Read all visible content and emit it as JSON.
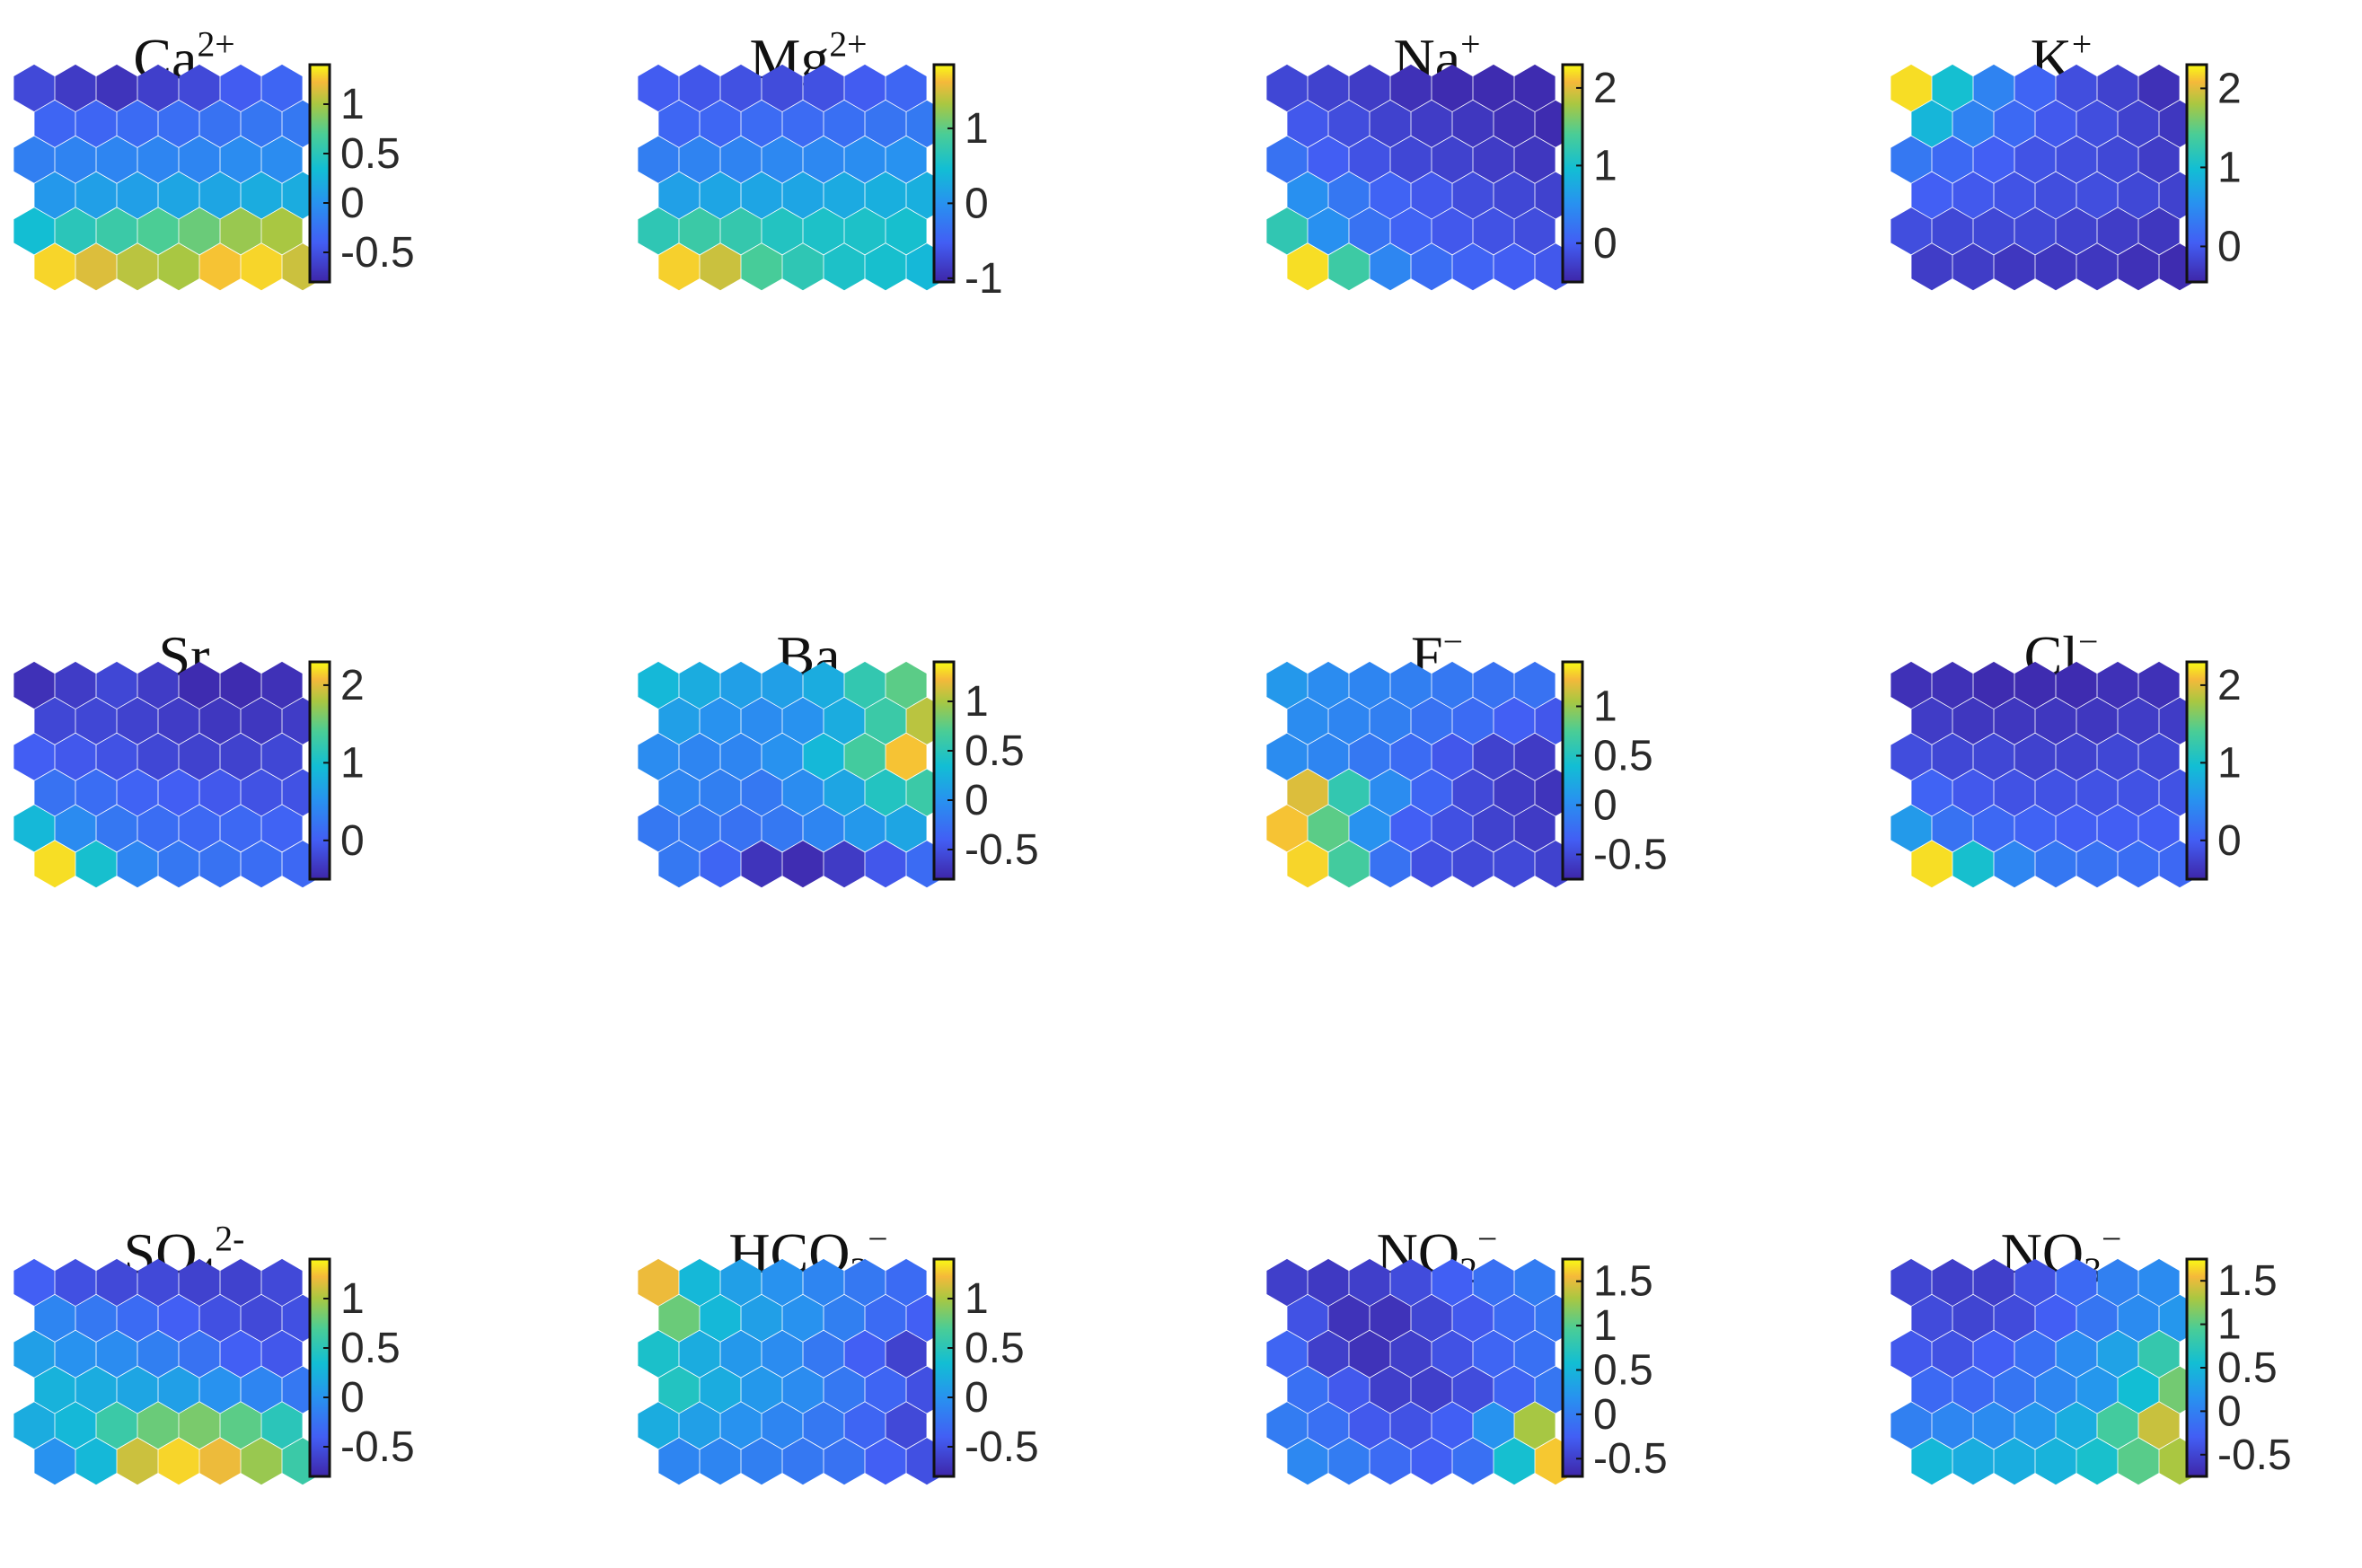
{
  "chart_data": [
    {
      "type": "heatmap",
      "title": "Ca2+",
      "title_parts": {
        "base": "Ca",
        "sub": "",
        "sup": "2+"
      },
      "colorbar": {
        "range": [
          -0.8,
          1.4
        ],
        "ticks": [
          -0.5,
          0,
          0.5,
          1
        ],
        "tick_labels": [
          "-0.5",
          "0",
          "0.5",
          "1"
        ]
      },
      "rows": 6,
      "cols": 7,
      "grid": [
        [
          -0.55,
          -0.65,
          -0.7,
          -0.62,
          -0.55,
          -0.42,
          -0.35
        ],
        [
          -0.35,
          -0.35,
          -0.3,
          -0.28,
          -0.25,
          -0.22,
          -0.2
        ],
        [
          -0.15,
          -0.12,
          -0.1,
          -0.1,
          -0.1,
          -0.05,
          -0.05
        ],
        [
          0.05,
          0.1,
          0.1,
          0.15,
          0.15,
          0.2,
          0.2
        ],
        [
          0.35,
          0.5,
          0.6,
          0.7,
          0.8,
          0.95,
          1.0
        ],
        [
          1.3,
          1.15,
          1.05,
          1.0,
          1.25,
          1.3,
          1.1
        ]
      ]
    },
    {
      "type": "heatmap",
      "title": "Mg2+",
      "title_parts": {
        "base": "Mg",
        "sub": "",
        "sup": "2+"
      },
      "colorbar": {
        "range": [
          -1.05,
          1.85
        ],
        "ticks": [
          -1,
          0,
          1
        ],
        "tick_labels": [
          "-1",
          "0",
          "1"
        ]
      },
      "rows": 6,
      "cols": 7,
      "grid": [
        [
          -0.55,
          -0.6,
          -0.65,
          -0.7,
          -0.65,
          -0.55,
          -0.45
        ],
        [
          -0.45,
          -0.45,
          -0.4,
          -0.4,
          -0.35,
          -0.3,
          -0.25
        ],
        [
          -0.2,
          -0.15,
          -0.15,
          -0.1,
          -0.1,
          -0.05,
          0.0
        ],
        [
          0.15,
          0.2,
          0.2,
          0.2,
          0.25,
          0.3,
          0.3
        ],
        [
          0.7,
          0.8,
          0.75,
          0.6,
          0.55,
          0.55,
          0.5
        ],
        [
          1.7,
          1.45,
          0.9,
          0.7,
          0.55,
          0.5,
          0.4
        ]
      ]
    },
    {
      "type": "heatmap",
      "title": "Na+",
      "title_parts": {
        "base": "Na",
        "sub": "",
        "sup": "+"
      },
      "colorbar": {
        "range": [
          -0.5,
          2.3
        ],
        "ticks": [
          0,
          1,
          2
        ],
        "tick_labels": [
          "0",
          "1",
          "2"
        ]
      },
      "rows": 6,
      "cols": 7,
      "grid": [
        [
          -0.2,
          -0.25,
          -0.3,
          -0.4,
          -0.45,
          -0.45,
          -0.45
        ],
        [
          -0.05,
          -0.15,
          -0.25,
          -0.3,
          -0.35,
          -0.4,
          -0.45
        ],
        [
          0.2,
          0.0,
          -0.1,
          -0.2,
          -0.25,
          -0.3,
          -0.35
        ],
        [
          0.5,
          0.25,
          0.05,
          -0.05,
          -0.15,
          -0.2,
          -0.25
        ],
        [
          1.2,
          0.5,
          0.2,
          0.05,
          -0.05,
          -0.1,
          -0.15
        ],
        [
          2.2,
          1.3,
          0.4,
          0.15,
          0.05,
          0.0,
          -0.05
        ]
      ]
    },
    {
      "type": "heatmap",
      "title": "K+",
      "title_parts": {
        "base": "K",
        "sub": "",
        "sup": "+"
      },
      "colorbar": {
        "range": [
          -0.45,
          2.3
        ],
        "ticks": [
          0,
          1,
          2
        ],
        "tick_labels": [
          "0",
          "1",
          "2"
        ]
      },
      "rows": 6,
      "cols": 7,
      "grid": [
        [
          2.2,
          1.0,
          0.4,
          0.1,
          -0.1,
          -0.2,
          -0.35
        ],
        [
          0.9,
          0.4,
          0.15,
          0.0,
          -0.1,
          -0.2,
          -0.3
        ],
        [
          0.3,
          0.15,
          0.05,
          -0.05,
          -0.1,
          -0.15,
          -0.25
        ],
        [
          0.05,
          0.0,
          -0.05,
          -0.1,
          -0.1,
          -0.15,
          -0.2
        ],
        [
          -0.1,
          -0.15,
          -0.15,
          -0.15,
          -0.2,
          -0.25,
          -0.3
        ],
        [
          -0.25,
          -0.25,
          -0.3,
          -0.3,
          -0.3,
          -0.35,
          -0.4
        ]
      ]
    },
    {
      "type": "heatmap",
      "title": "Sr",
      "title_parts": {
        "base": "Sr",
        "sub": "",
        "sup": ""
      },
      "colorbar": {
        "range": [
          -0.5,
          2.3
        ],
        "ticks": [
          0,
          1,
          2
        ],
        "tick_labels": [
          "0",
          "1",
          "2"
        ]
      },
      "rows": 6,
      "cols": 7,
      "grid": [
        [
          -0.4,
          -0.3,
          -0.2,
          -0.3,
          -0.45,
          -0.45,
          -0.4
        ],
        [
          -0.2,
          -0.2,
          -0.25,
          -0.3,
          -0.35,
          -0.35,
          -0.3
        ],
        [
          0.0,
          -0.05,
          -0.1,
          -0.2,
          -0.25,
          -0.25,
          -0.2
        ],
        [
          0.2,
          0.15,
          0.05,
          0.0,
          -0.05,
          -0.1,
          -0.1
        ],
        [
          0.9,
          0.45,
          0.25,
          0.15,
          0.1,
          0.1,
          0.05
        ],
        [
          2.2,
          1.0,
          0.4,
          0.25,
          0.2,
          0.15,
          0.1
        ]
      ]
    },
    {
      "type": "heatmap",
      "title": "Ba",
      "title_parts": {
        "base": "Ba",
        "sub": "",
        "sup": ""
      },
      "colorbar": {
        "range": [
          -0.8,
          1.4
        ],
        "ticks": [
          -0.5,
          0,
          0.5,
          1
        ],
        "tick_labels": [
          "-0.5",
          "0",
          "0.5",
          "1"
        ]
      },
      "rows": 6,
      "cols": 7,
      "grid": [
        [
          0.3,
          0.2,
          0.1,
          0.1,
          0.2,
          0.55,
          0.75
        ],
        [
          0.1,
          0.0,
          -0.05,
          0.0,
          0.2,
          0.6,
          1.05
        ],
        [
          -0.05,
          -0.1,
          -0.1,
          0.0,
          0.3,
          0.65,
          1.25
        ],
        [
          -0.1,
          -0.15,
          -0.2,
          -0.05,
          0.15,
          0.45,
          0.6
        ],
        [
          -0.2,
          -0.2,
          -0.25,
          -0.2,
          -0.1,
          0.05,
          0.15
        ],
        [
          -0.2,
          -0.35,
          -0.7,
          -0.75,
          -0.65,
          -0.45,
          -0.3
        ]
      ]
    },
    {
      "type": "heatmap",
      "title": "F−",
      "title_parts": {
        "base": "F",
        "sub": "",
        "sup": "−"
      },
      "colorbar": {
        "range": [
          -0.75,
          1.45
        ],
        "ticks": [
          -0.5,
          0,
          0.5,
          1
        ],
        "tick_labels": [
          "-0.5",
          "0",
          "0.5",
          "1"
        ]
      },
      "rows": 6,
      "cols": 7,
      "grid": [
        [
          0.1,
          0.0,
          -0.05,
          -0.1,
          -0.15,
          -0.2,
          -0.2
        ],
        [
          0.0,
          -0.05,
          -0.1,
          -0.2,
          -0.25,
          -0.35,
          -0.4
        ],
        [
          0.0,
          -0.05,
          -0.15,
          -0.25,
          -0.4,
          -0.55,
          -0.6
        ],
        [
          1.2,
          0.6,
          0.0,
          -0.3,
          -0.5,
          -0.6,
          -0.65
        ],
        [
          1.3,
          0.8,
          0.05,
          -0.35,
          -0.45,
          -0.55,
          -0.6
        ],
        [
          1.35,
          0.7,
          -0.2,
          -0.45,
          -0.5,
          -0.5,
          -0.55
        ]
      ]
    },
    {
      "type": "heatmap",
      "title": "Cl−",
      "title_parts": {
        "base": "Cl",
        "sub": "",
        "sup": "−"
      },
      "colorbar": {
        "range": [
          -0.5,
          2.3
        ],
        "ticks": [
          0,
          1,
          2
        ],
        "tick_labels": [
          "0",
          "1",
          "2"
        ]
      },
      "rows": 6,
      "cols": 7,
      "grid": [
        [
          -0.4,
          -0.4,
          -0.45,
          -0.45,
          -0.45,
          -0.4,
          -0.4
        ],
        [
          -0.3,
          -0.35,
          -0.35,
          -0.35,
          -0.35,
          -0.3,
          -0.3
        ],
        [
          -0.15,
          -0.2,
          -0.2,
          -0.25,
          -0.25,
          -0.2,
          -0.2
        ],
        [
          0.05,
          -0.05,
          -0.1,
          -0.1,
          -0.1,
          -0.1,
          -0.1
        ],
        [
          0.6,
          0.2,
          0.1,
          0.05,
          0.0,
          0.0,
          0.0
        ],
        [
          2.2,
          1.0,
          0.4,
          0.25,
          0.2,
          0.15,
          0.1
        ]
      ]
    },
    {
      "type": "heatmap",
      "title": "SO42-",
      "title_parts": {
        "base": "SO",
        "sub": "4",
        "sup": "2-"
      },
      "colorbar": {
        "range": [
          -0.8,
          1.4
        ],
        "ticks": [
          -0.5,
          0,
          0.5,
          1
        ],
        "tick_labels": [
          "-0.5",
          "0",
          "0.5",
          "1"
        ]
      },
      "rows": 6,
      "cols": 7,
      "grid": [
        [
          -0.4,
          -0.5,
          -0.55,
          -0.55,
          -0.6,
          -0.6,
          -0.55
        ],
        [
          -0.1,
          -0.2,
          -0.3,
          -0.4,
          -0.5,
          -0.55,
          -0.5
        ],
        [
          0.1,
          0.0,
          -0.05,
          -0.15,
          -0.25,
          -0.4,
          -0.45
        ],
        [
          0.25,
          0.2,
          0.15,
          0.1,
          0.0,
          -0.1,
          -0.2
        ],
        [
          0.2,
          0.3,
          0.6,
          0.8,
          0.85,
          0.75,
          0.5
        ],
        [
          0.0,
          0.3,
          1.1,
          1.3,
          1.2,
          0.95,
          0.6
        ]
      ]
    },
    {
      "type": "heatmap",
      "title": "HCO3−",
      "title_parts": {
        "base": "HCO",
        "sub": "3",
        "sup": "−"
      },
      "colorbar": {
        "range": [
          -0.8,
          1.4
        ],
        "ticks": [
          -0.5,
          0,
          0.5,
          1
        ],
        "tick_labels": [
          "-0.5",
          "0",
          "0.5",
          "1"
        ]
      },
      "rows": 6,
      "cols": 7,
      "grid": [
        [
          1.2,
          0.3,
          0.1,
          0.0,
          -0.1,
          -0.2,
          -0.3
        ],
        [
          0.8,
          0.3,
          0.1,
          0.0,
          -0.15,
          -0.3,
          -0.4
        ],
        [
          0.4,
          0.2,
          0.05,
          -0.05,
          -0.2,
          -0.4,
          -0.6
        ],
        [
          0.45,
          0.2,
          0.05,
          -0.05,
          -0.2,
          -0.35,
          -0.5
        ],
        [
          0.2,
          0.1,
          0.0,
          -0.1,
          -0.2,
          -0.35,
          -0.55
        ],
        [
          -0.1,
          -0.1,
          -0.15,
          -0.2,
          -0.25,
          -0.4,
          -0.5
        ]
      ]
    },
    {
      "type": "heatmap",
      "title": "NO2−",
      "title_parts": {
        "base": "NO",
        "sub": "2",
        "sup": "−"
      },
      "colorbar": {
        "range": [
          -0.7,
          1.75
        ],
        "ticks": [
          -0.5,
          0,
          0.5,
          1,
          1.5
        ],
        "tick_labels": [
          "-0.5",
          "0",
          "0.5",
          "1",
          "1.5"
        ]
      },
      "rows": 6,
      "cols": 7,
      "grid": [
        [
          -0.5,
          -0.55,
          -0.5,
          -0.4,
          -0.25,
          -0.1,
          0.0
        ],
        [
          -0.35,
          -0.6,
          -0.6,
          -0.45,
          -0.3,
          -0.15,
          -0.05
        ],
        [
          -0.2,
          -0.5,
          -0.6,
          -0.5,
          -0.35,
          -0.2,
          -0.1
        ],
        [
          -0.1,
          -0.3,
          -0.5,
          -0.5,
          -0.4,
          -0.2,
          -0.05
        ],
        [
          0.0,
          -0.1,
          -0.3,
          -0.35,
          -0.25,
          0.2,
          1.3
        ],
        [
          0.1,
          0.0,
          -0.15,
          -0.25,
          -0.1,
          0.6,
          1.6
        ]
      ]
    },
    {
      "type": "heatmap",
      "title": "NO3−",
      "title_parts": {
        "base": "NO",
        "sub": "3",
        "sup": "−"
      },
      "colorbar": {
        "range": [
          -0.75,
          1.75
        ],
        "ticks": [
          -0.5,
          0,
          0.5,
          1,
          1.5
        ],
        "tick_labels": [
          "-0.5",
          "0",
          "0.5",
          "1",
          "1.5"
        ]
      },
      "rows": 6,
      "cols": 7,
      "grid": [
        [
          -0.5,
          -0.55,
          -0.55,
          -0.4,
          -0.2,
          0.0,
          0.1
        ],
        [
          -0.45,
          -0.5,
          -0.45,
          -0.3,
          -0.1,
          0.1,
          0.2
        ],
        [
          -0.35,
          -0.4,
          -0.3,
          -0.15,
          0.1,
          0.3,
          0.8
        ],
        [
          -0.2,
          -0.2,
          -0.1,
          0.05,
          0.2,
          0.55,
          1.1
        ],
        [
          0.0,
          0.05,
          0.1,
          0.2,
          0.4,
          0.9,
          1.4
        ],
        [
          0.5,
          0.4,
          0.4,
          0.45,
          0.6,
          1.0,
          1.3
        ]
      ]
    }
  ]
}
